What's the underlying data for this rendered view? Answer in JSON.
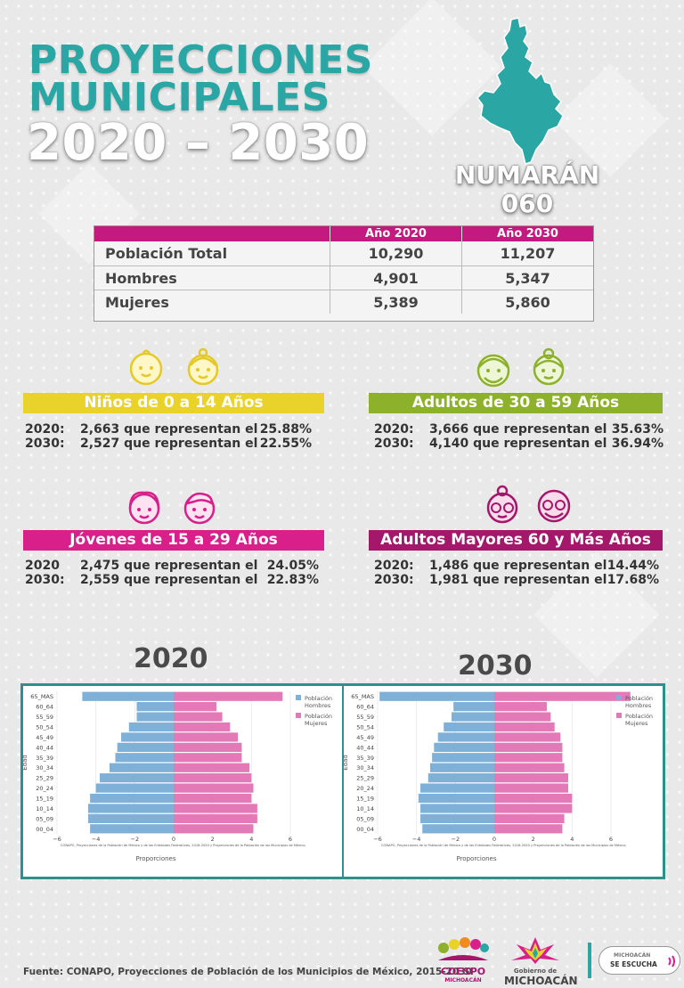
{
  "header": {
    "line1": "PROYECCIONES",
    "line2": "MUNICIPALES",
    "line3": "2020 – 2030"
  },
  "municipality": {
    "name": "NUMARÁN",
    "code": "060"
  },
  "population_table": {
    "headers": [
      "Año 2020",
      "Año 2030"
    ],
    "rows": [
      {
        "label": "Población Total",
        "y2020": "10,290",
        "y2030": "11,207"
      },
      {
        "label": "Hombres",
        "y2020": "4,901",
        "y2030": "5,347"
      },
      {
        "label": "Mujeres",
        "y2020": "5,389",
        "y2030": "5,860"
      }
    ]
  },
  "groups": {
    "ninos": {
      "title": "Niños de 0 a 14 Años",
      "color": "#e9d22a",
      "lines": [
        {
          "year": "2020:",
          "text": "2,663 que representan el",
          "pct": "25.88%"
        },
        {
          "year": "2030:",
          "text": "2,527 que representan el",
          "pct": "22.55%"
        }
      ]
    },
    "adultos": {
      "title": "Adultos de 30 a 59 Años",
      "color": "#8db12a",
      "lines": [
        {
          "year": "2020:",
          "text": "3,666 que representan el",
          "pct": "35.63%"
        },
        {
          "year": "2030:",
          "text": "4,140 que representan el",
          "pct": "36.94%"
        }
      ]
    },
    "jovenes": {
      "title": "Jóvenes de 15 a 29 Años",
      "color": "#d81f8a",
      "lines": [
        {
          "year": "2020",
          "text": "2,475 que representan el",
          "pct": "24.05%"
        },
        {
          "year": "2030:",
          "text": "2,559 que representan el",
          "pct": "22.83%"
        }
      ]
    },
    "mayores": {
      "title": "Adultos Mayores  60 y Más Años",
      "color": "#a4176b",
      "lines": [
        {
          "year": "2020:",
          "text": "1,486 que representan el",
          "pct": "14.44%"
        },
        {
          "year": "2030:",
          "text": "1,981 que representan el",
          "pct": "17.68%"
        }
      ]
    }
  },
  "colors": {
    "teal": "#2aa6a4",
    "magenta": "#c4197e",
    "hombres": "#7fb0d8",
    "mujeres": "#e479b8"
  },
  "icons": [
    "baby-boy-icon",
    "baby-girl-icon",
    "boy-face-icon",
    "girl-face-icon",
    "grandfather-icon",
    "grandmother-icon",
    "elder-woman-glasses-icon",
    "elder-man-glasses-icon",
    "municipality-map-icon"
  ],
  "chart_data": [
    {
      "type": "bar",
      "orientation": "horizontal-pyramid",
      "title": "2020",
      "ylabel": "Edad",
      "xlabel": "Proporciones",
      "source_note": "CONAPO, Proyecciones de la Población de México y de las Entidades Federativas, 2016-2050 y Proyecciones de la Población de los Municipios de México,",
      "xlim": [
        -6,
        6
      ],
      "xticks": [
        "−6",
        "−4",
        "−2",
        "0",
        "2",
        "4",
        "6"
      ],
      "legend_position": "top-right",
      "categories": [
        "00_04",
        "05_09",
        "10_14",
        "15_19",
        "20_24",
        "25_29",
        "30_34",
        "35_39",
        "40_44",
        "45_49",
        "50_54",
        "55_59",
        "60_64",
        "65_MAS"
      ],
      "series": [
        {
          "name": "Población Hombres",
          "values": [
            -4.3,
            -4.4,
            -4.4,
            -4.3,
            -4.0,
            -3.8,
            -3.3,
            -3.0,
            -2.9,
            -2.7,
            -2.3,
            -1.9,
            -1.9,
            -4.7
          ]
        },
        {
          "name": "Población Mujeres",
          "values": [
            4.1,
            4.3,
            4.3,
            4.0,
            4.1,
            4.0,
            3.9,
            3.5,
            3.5,
            3.3,
            2.9,
            2.5,
            2.2,
            5.6
          ]
        }
      ]
    },
    {
      "type": "bar",
      "orientation": "horizontal-pyramid",
      "title": "2030",
      "ylabel": "Edad",
      "xlabel": "Proporciones",
      "source_note": "CONAPO, Proyecciones de la Población de México y de las Entidades Federativas, 2016-2050 y Proyecciones de la Población de los Municipios de México,",
      "xlim": [
        -6,
        6
      ],
      "xticks": [
        "−6",
        "−4",
        "−2",
        "0",
        "2",
        "4",
        "6"
      ],
      "legend_position": "top-right",
      "categories": [
        "00_04",
        "05_09",
        "10_14",
        "15_19",
        "20_24",
        "25_29",
        "30_34",
        "35_39",
        "40_44",
        "45_49",
        "50_54",
        "55_59",
        "60_64",
        "65_MAS"
      ],
      "series": [
        {
          "name": "Población Hombres",
          "values": [
            -3.7,
            -3.8,
            -3.8,
            -3.9,
            -3.8,
            -3.4,
            -3.3,
            -3.2,
            -3.1,
            -2.9,
            -2.6,
            -2.2,
            -2.1,
            -5.9
          ]
        },
        {
          "name": "Población Mujeres",
          "values": [
            3.5,
            3.6,
            4.0,
            4.0,
            3.8,
            3.8,
            3.6,
            3.5,
            3.5,
            3.4,
            3.1,
            2.9,
            2.7,
            7.0
          ]
        }
      ]
    }
  ],
  "footer": {
    "source": "Fuente: CONAPO, Proyecciones de Población de los Municipios de México, 2015-2030",
    "logo1_a": "COESPO",
    "logo1_b": "MICHOACÁN",
    "logo2_a": "Gobierno de",
    "logo2_b": "MICHOACÁN",
    "logo3_a": "MICHOACÁN",
    "logo3_b": "SE ESCUCHA"
  }
}
